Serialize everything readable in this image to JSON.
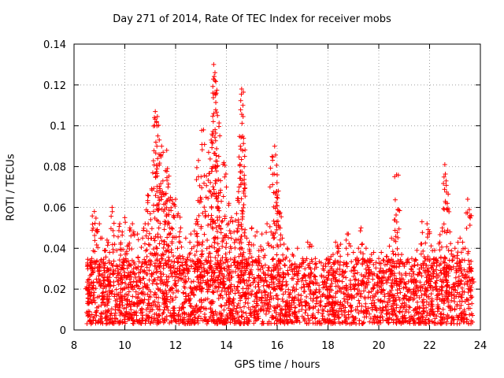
{
  "chart_data": {
    "type": "scatter",
    "title": "Day 271 of 2014, Rate Of TEC Index for receiver mobs",
    "xlabel": "GPS time / hours",
    "ylabel": "ROTI / TECUs",
    "xlim": [
      8,
      24
    ],
    "ylim": [
      0,
      0.14
    ],
    "xticks": [
      "8",
      "10",
      "12",
      "14",
      "16",
      "18",
      "20",
      "22",
      "24"
    ],
    "xtick_values": [
      8,
      10,
      12,
      14,
      16,
      18,
      20,
      22,
      24
    ],
    "yticks": [
      "0",
      "0.02",
      "0.04",
      "0.06",
      "0.08",
      "0.1",
      "0.12",
      "0.14"
    ],
    "ytick_values": [
      0,
      0.02,
      0.04,
      0.06,
      0.08,
      0.1,
      0.12,
      0.14
    ],
    "grid": true,
    "marker": "plus",
    "color": "#ff0000",
    "series": [
      {
        "name": "ROTI",
        "points": [
          [
            8.5,
            0.021
          ],
          [
            8.6,
            0.018
          ],
          [
            8.7,
            0.035
          ],
          [
            8.8,
            0.058
          ],
          [
            8.9,
            0.048
          ],
          [
            9.0,
            0.052
          ],
          [
            9.1,
            0.045
          ],
          [
            9.2,
            0.039
          ],
          [
            9.3,
            0.044
          ],
          [
            9.4,
            0.038
          ],
          [
            9.5,
            0.06
          ],
          [
            9.6,
            0.042
          ],
          [
            9.8,
            0.052
          ],
          [
            9.9,
            0.048
          ],
          [
            10.0,
            0.055
          ],
          [
            10.1,
            0.041
          ],
          [
            10.2,
            0.05
          ],
          [
            10.3,
            0.052
          ],
          [
            10.5,
            0.047
          ],
          [
            10.7,
            0.045
          ],
          [
            10.8,
            0.052
          ],
          [
            10.9,
            0.066
          ],
          [
            11.0,
            0.057
          ],
          [
            11.1,
            0.077
          ],
          [
            11.2,
            0.107
          ],
          [
            11.25,
            0.102
          ],
          [
            11.3,
            0.095
          ],
          [
            11.35,
            0.086
          ],
          [
            11.45,
            0.09
          ],
          [
            11.5,
            0.073
          ],
          [
            11.6,
            0.078
          ],
          [
            11.65,
            0.088
          ],
          [
            11.7,
            0.07
          ],
          [
            11.8,
            0.065
          ],
          [
            11.9,
            0.062
          ],
          [
            12.0,
            0.064
          ],
          [
            12.1,
            0.057
          ],
          [
            12.2,
            0.05
          ],
          [
            12.4,
            0.045
          ],
          [
            12.6,
            0.047
          ],
          [
            12.8,
            0.052
          ],
          [
            12.9,
            0.083
          ],
          [
            13.0,
            0.075
          ],
          [
            13.1,
            0.098
          ],
          [
            13.2,
            0.065
          ],
          [
            13.3,
            0.087
          ],
          [
            13.4,
            0.093
          ],
          [
            13.5,
            0.13
          ],
          [
            13.55,
            0.126
          ],
          [
            13.6,
            0.116
          ],
          [
            13.65,
            0.105
          ],
          [
            13.7,
            0.085
          ],
          [
            13.8,
            0.063
          ],
          [
            13.9,
            0.082
          ],
          [
            14.0,
            0.07
          ],
          [
            14.1,
            0.062
          ],
          [
            14.2,
            0.055
          ],
          [
            14.3,
            0.048
          ],
          [
            14.4,
            0.057
          ],
          [
            14.5,
            0.07
          ],
          [
            14.55,
            0.09
          ],
          [
            14.6,
            0.118
          ],
          [
            14.65,
            0.11
          ],
          [
            14.7,
            0.08
          ],
          [
            14.8,
            0.045
          ],
          [
            14.9,
            0.043
          ],
          [
            15.0,
            0.05
          ],
          [
            15.2,
            0.048
          ],
          [
            15.4,
            0.047
          ],
          [
            15.6,
            0.052
          ],
          [
            15.8,
            0.085
          ],
          [
            15.9,
            0.09
          ],
          [
            16.0,
            0.076
          ],
          [
            16.05,
            0.068
          ],
          [
            16.1,
            0.057
          ],
          [
            16.2,
            0.045
          ],
          [
            16.4,
            0.04
          ],
          [
            16.6,
            0.037
          ],
          [
            16.8,
            0.04
          ],
          [
            17.0,
            0.035
          ],
          [
            17.2,
            0.043
          ],
          [
            17.3,
            0.042
          ],
          [
            17.5,
            0.035
          ],
          [
            17.8,
            0.03
          ],
          [
            18.0,
            0.035
          ],
          [
            18.2,
            0.037
          ],
          [
            18.3,
            0.043
          ],
          [
            18.5,
            0.042
          ],
          [
            18.8,
            0.047
          ],
          [
            19.0,
            0.038
          ],
          [
            19.2,
            0.04
          ],
          [
            19.3,
            0.05
          ],
          [
            19.5,
            0.04
          ],
          [
            19.8,
            0.038
          ],
          [
            20.0,
            0.035
          ],
          [
            20.1,
            0.038
          ],
          [
            20.3,
            0.036
          ],
          [
            20.5,
            0.045
          ],
          [
            20.6,
            0.044
          ],
          [
            20.7,
            0.076
          ],
          [
            20.75,
            0.059
          ],
          [
            20.9,
            0.037
          ],
          [
            21.1,
            0.033
          ],
          [
            21.3,
            0.035
          ],
          [
            21.5,
            0.039
          ],
          [
            21.7,
            0.053
          ],
          [
            21.9,
            0.052
          ],
          [
            22.0,
            0.048
          ],
          [
            22.2,
            0.039
          ],
          [
            22.4,
            0.043
          ],
          [
            22.5,
            0.05
          ],
          [
            22.6,
            0.081
          ],
          [
            22.65,
            0.073
          ],
          [
            22.7,
            0.062
          ],
          [
            22.8,
            0.048
          ],
          [
            23.0,
            0.04
          ],
          [
            23.1,
            0.035
          ],
          [
            23.2,
            0.045
          ],
          [
            23.3,
            0.043
          ],
          [
            23.4,
            0.04
          ],
          [
            23.5,
            0.064
          ],
          [
            23.6,
            0.056
          ],
          [
            23.7,
            0.025
          ]
        ]
      }
    ],
    "background_band": {
      "description": "dense cluster of points across the full time range",
      "x_range": [
        8.5,
        23.7
      ],
      "y_range": [
        0.003,
        0.035
      ]
    }
  }
}
